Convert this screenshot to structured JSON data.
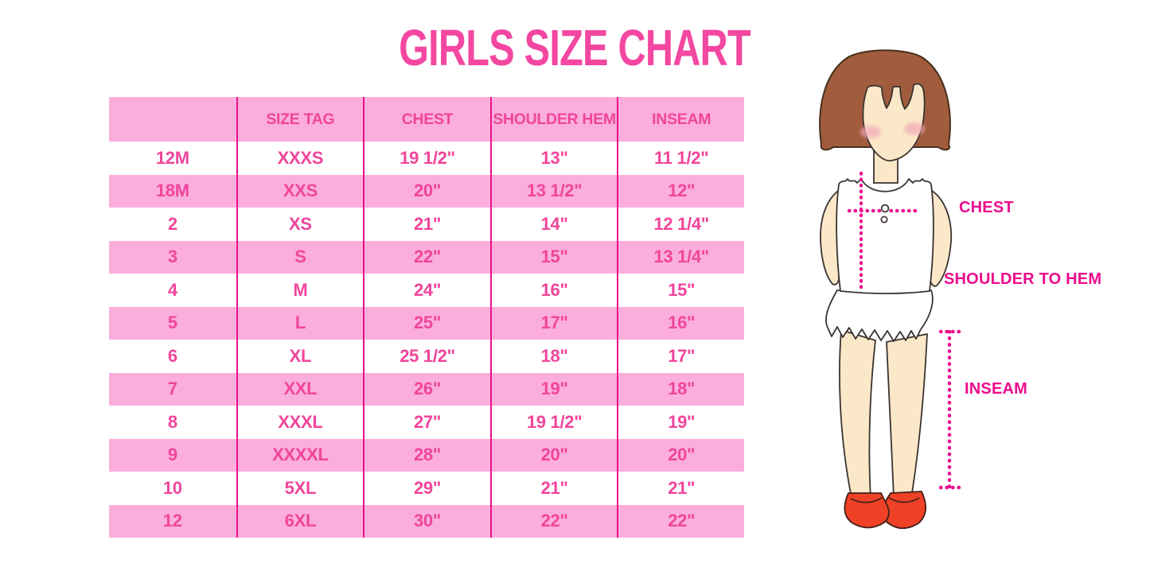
{
  "page": {
    "title": "GIRLS SIZE CHART"
  },
  "colors": {
    "title_pink": "#f347a1",
    "row_pink": "#fbaedb",
    "cell_text": "#f0459c",
    "grid_line": "#e8118a",
    "label_magenta": "#ec0c8d",
    "hair_brown": "#a15c3d",
    "skin_tone": "#fbe8c8",
    "blush_pink": "#f2a9b8",
    "shoe_red": "#ee4125",
    "outline_dark": "#3a3330"
  },
  "chart_data": {
    "type": "table",
    "title": "GIRLS SIZE CHART",
    "columns": [
      "",
      "SIZE TAG",
      "CHEST",
      "SHOULDER HEM",
      "INSEAM"
    ],
    "rows": [
      [
        "12M",
        "XXXS",
        "19 1/2\"",
        "13\"",
        "11 1/2\""
      ],
      [
        "18M",
        "XXS",
        "20\"",
        "13 1/2\"",
        "12\""
      ],
      [
        "2",
        "XS",
        "21\"",
        "14\"",
        "12 1/4\""
      ],
      [
        "3",
        "S",
        "22\"",
        "15\"",
        "13 1/4\""
      ],
      [
        "4",
        "M",
        "24\"",
        "16\"",
        "15\""
      ],
      [
        "5",
        "L",
        "25\"",
        "17\"",
        "16\""
      ],
      [
        "6",
        "XL",
        "25 1/2\"",
        "18\"",
        "17\""
      ],
      [
        "7",
        "XXL",
        "26\"",
        "19\"",
        "18\""
      ],
      [
        "8",
        "XXXL",
        "27\"",
        "19 1/2\"",
        "19\""
      ],
      [
        "9",
        "XXXXL",
        "28\"",
        "20\"",
        "20\""
      ],
      [
        "10",
        "5XL",
        "29\"",
        "21\"",
        "21\""
      ],
      [
        "12",
        "6XL",
        "30\"",
        "22\"",
        "22\""
      ]
    ],
    "row_style": "alternating white/pink starting white, header pink",
    "legend_position": "none",
    "grid": "vertical magenta column separators only"
  },
  "figure": {
    "chest_label": "CHEST",
    "shoulder_label": "SHOULDER TO HEM",
    "inseam_label": "INSEAM"
  }
}
